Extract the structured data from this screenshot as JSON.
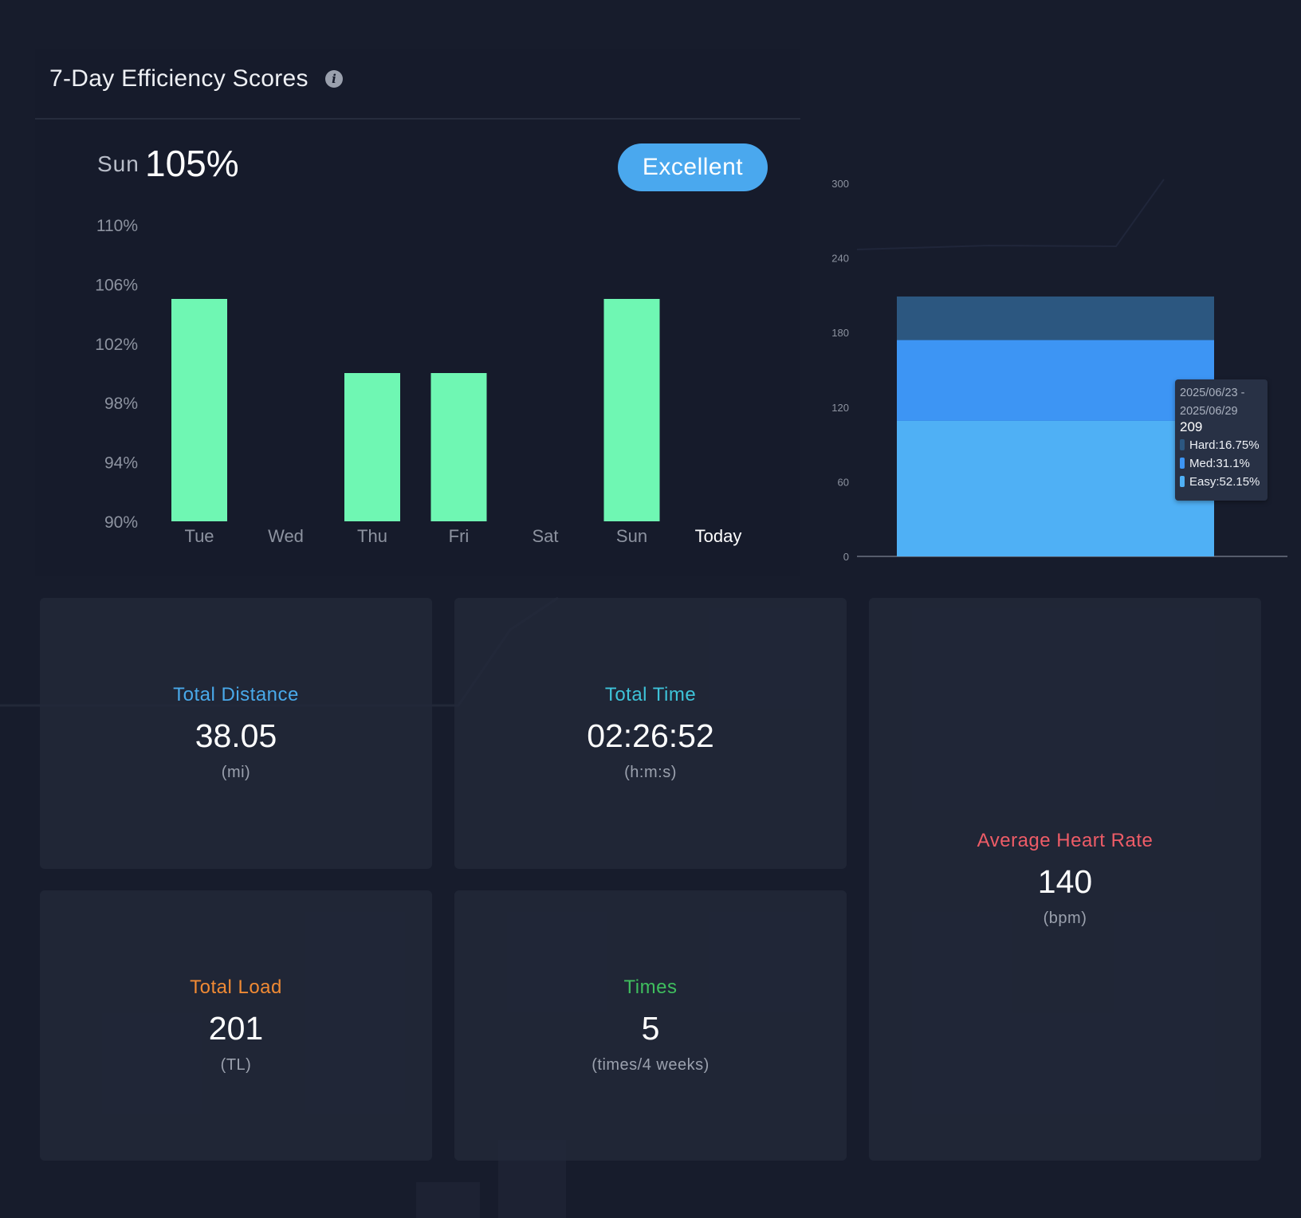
{
  "efficiency": {
    "title": "7-Day Efficiency Scores",
    "info_icon": "info-icon",
    "selected_day": "Sun",
    "selected_value": "105%",
    "rating": "Excellent",
    "colors": {
      "bar": "#6ff7b3",
      "badge": "#4aa8ee",
      "today": "#ffffff",
      "axis_text": "#8d93a0"
    }
  },
  "load_chart": {
    "tooltip": {
      "date_start": "2025/06/23 -",
      "date_end": "2025/06/29",
      "total": "209",
      "items": [
        {
          "label": "Hard:16.75%",
          "color": "#2c5780"
        },
        {
          "label": "Med:31.1%",
          "color": "#3d95f4"
        },
        {
          "label": "Easy:52.15%",
          "color": "#4fb0f5"
        }
      ]
    }
  },
  "chart_data": [
    {
      "type": "bar",
      "categories": [
        "Tue",
        "Wed",
        "Thu",
        "Fri",
        "Sat",
        "Sun",
        "Today"
      ],
      "values": [
        105,
        null,
        100,
        100,
        null,
        105,
        null
      ],
      "ylim": [
        90,
        110
      ],
      "yticks": [
        "90%",
        "94%",
        "98%",
        "102%",
        "106%",
        "110%"
      ],
      "ytick_values": [
        90,
        94,
        98,
        102,
        106,
        110
      ],
      "grid": false
    },
    {
      "type": "bar",
      "stacked": true,
      "ylim": [
        0,
        300
      ],
      "yticks": [
        "0",
        "60",
        "120",
        "180",
        "240",
        "300"
      ],
      "ytick_values": [
        0,
        60,
        120,
        180,
        240,
        300
      ],
      "series": [
        {
          "name": "Easy",
          "values": [
            109
          ]
        },
        {
          "name": "Med",
          "values": [
            65
          ]
        },
        {
          "name": "Hard",
          "values": [
            35
          ]
        }
      ]
    }
  ],
  "stats": {
    "distance": {
      "label": "Total Distance",
      "value": "38.05",
      "unit": "(mi)",
      "color": "#49a9ea"
    },
    "time": {
      "label": "Total Time",
      "value": "02:26:52",
      "unit": "(h:m:s)",
      "color": "#3ec3d9"
    },
    "heart_rate": {
      "label": "Average Heart Rate",
      "value": "140",
      "unit": "(bpm)",
      "color": "#ee5c67"
    },
    "load": {
      "label": "Total Load",
      "value": "201",
      "unit": "(TL)",
      "color": "#f08a34"
    },
    "times": {
      "label": "Times",
      "value": "5",
      "unit": "(times/4 weeks)",
      "color": "#3fbe5e"
    }
  }
}
